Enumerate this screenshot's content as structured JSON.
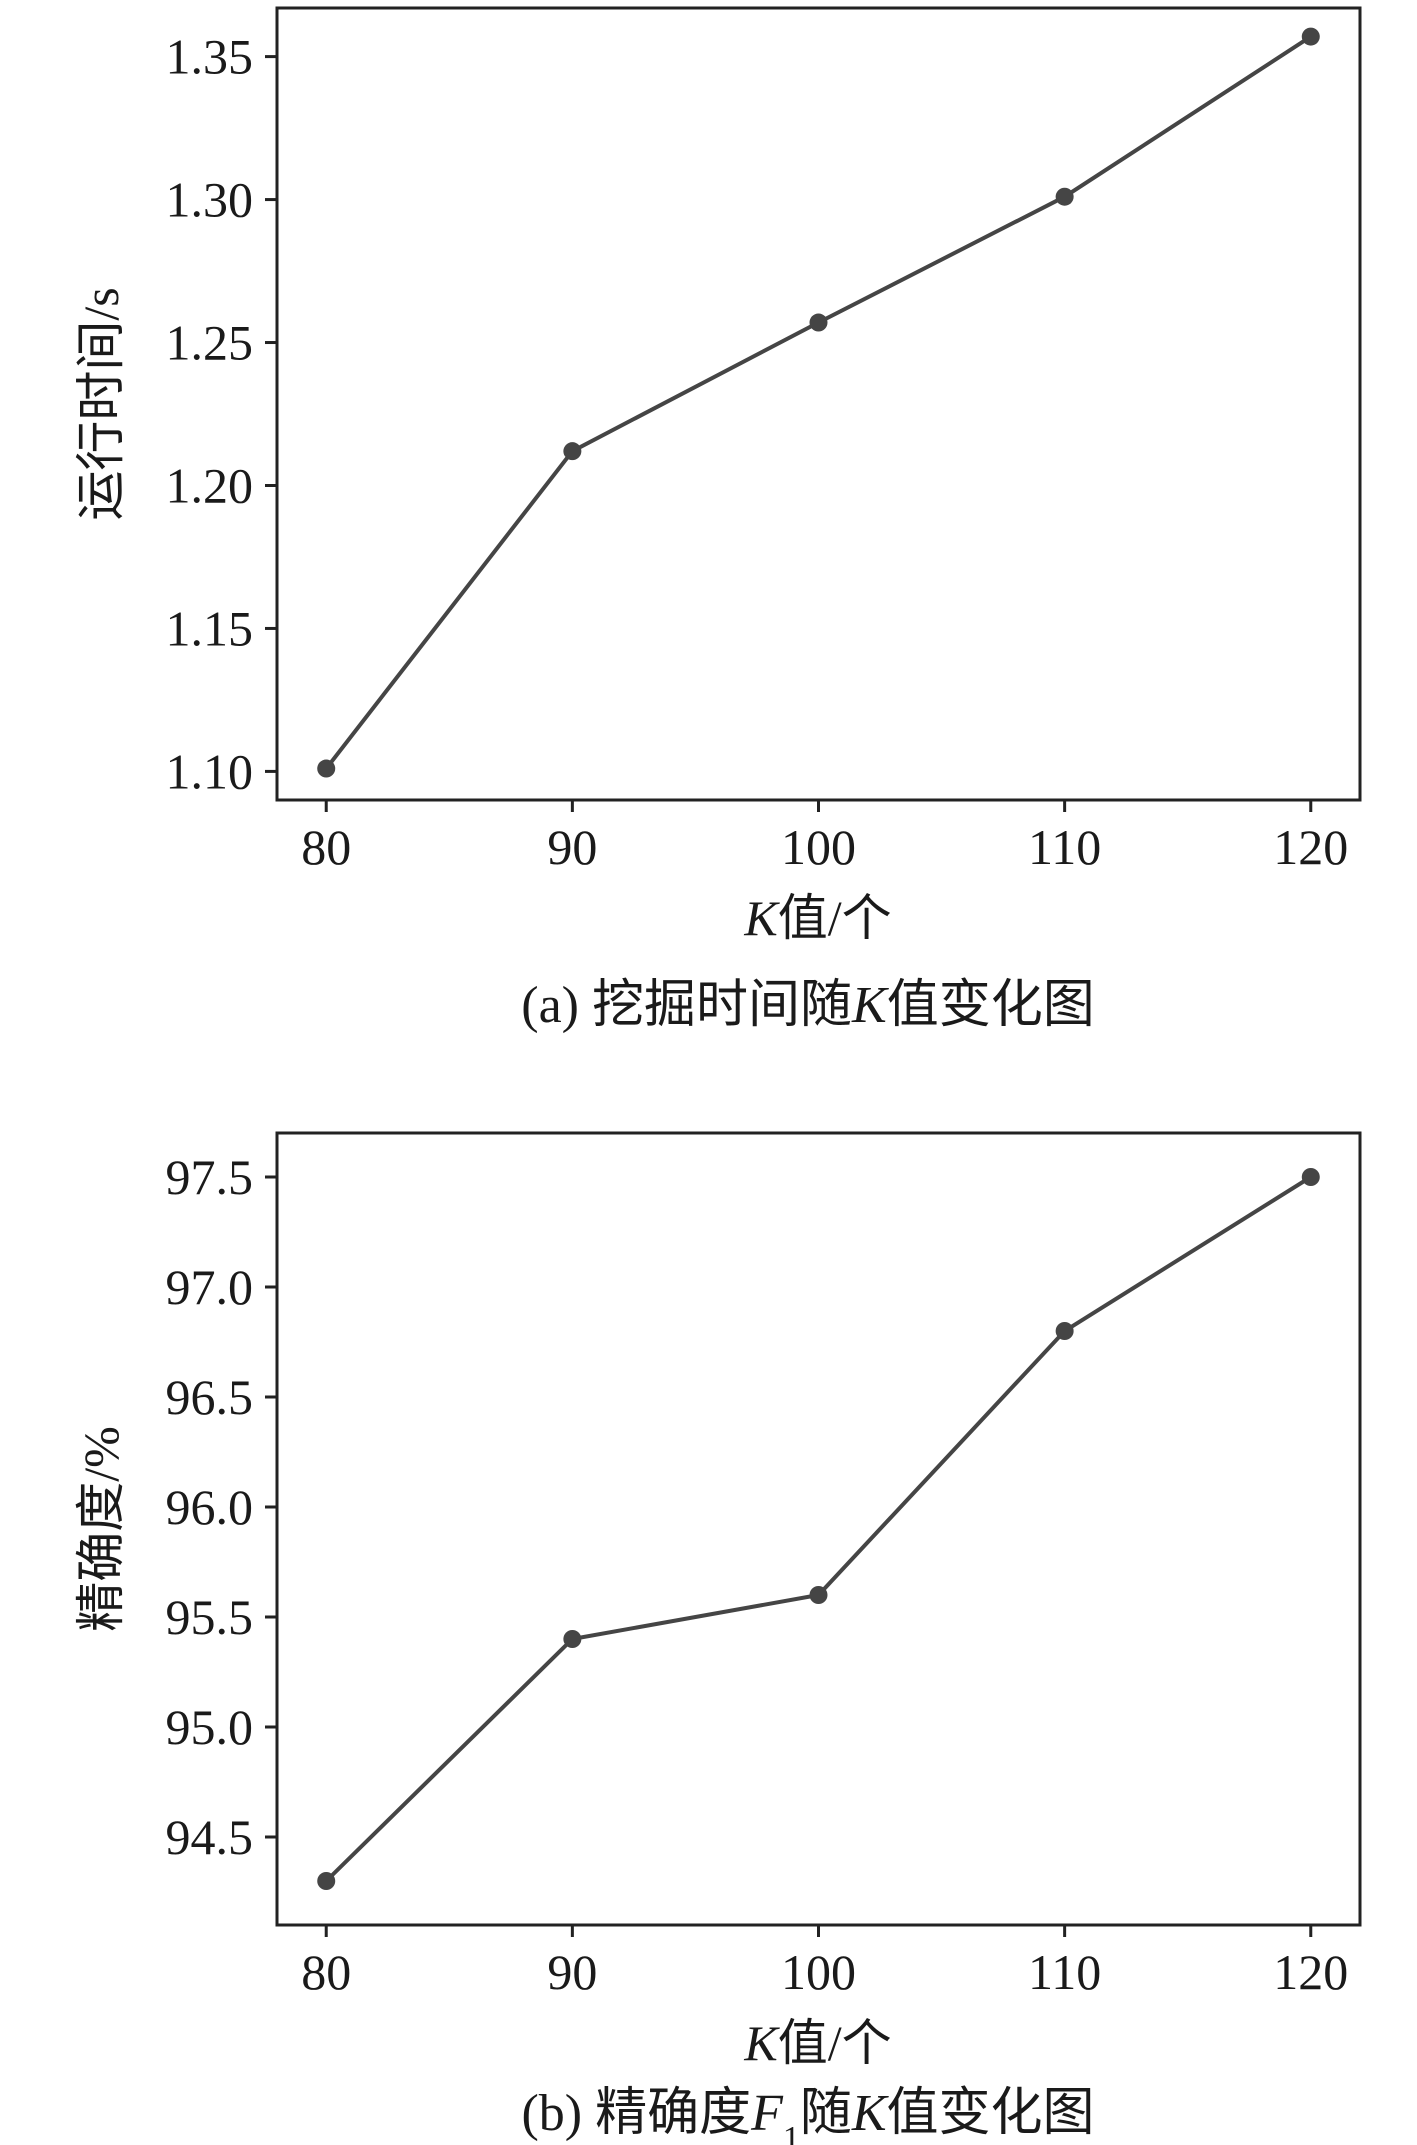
{
  "chart_data": [
    {
      "type": "line",
      "x": [
        80,
        90,
        100,
        110,
        120
      ],
      "series": [
        {
          "values": [
            1.101,
            1.212,
            1.257,
            1.301,
            1.357
          ]
        }
      ],
      "xlabel_italic": "K",
      "xlabel_rest": "值/个",
      "ylabel": "运行时间/s",
      "xlim": [
        78,
        122
      ],
      "ylim": [
        1.09,
        1.367
      ],
      "xticks": [
        80,
        90,
        100,
        110,
        120
      ],
      "yticks": [
        1.1,
        1.15,
        1.2,
        1.25,
        1.3,
        1.35
      ],
      "ytick_labels": [
        "1.10",
        "1.15",
        "1.20",
        "1.25",
        "1.30",
        "1.35"
      ],
      "grid": false,
      "line_color": "#454545",
      "caption_prefix": "(a) 挖掘时间随",
      "caption_italic": "K",
      "caption_suffix": "值变化图"
    },
    {
      "type": "line",
      "x": [
        80,
        90,
        100,
        110,
        120
      ],
      "series": [
        {
          "values": [
            94.3,
            95.4,
            95.6,
            96.8,
            97.5
          ]
        }
      ],
      "xlabel_italic": "K",
      "xlabel_rest": "值/个",
      "ylabel": "精确度/%",
      "xlim": [
        78,
        122
      ],
      "ylim": [
        94.1,
        97.7
      ],
      "xticks": [
        80,
        90,
        100,
        110,
        120
      ],
      "yticks": [
        94.5,
        95.0,
        95.5,
        96.0,
        96.5,
        97.0,
        97.5
      ],
      "ytick_labels": [
        "94.5",
        "95.0",
        "95.5",
        "96.0",
        "96.5",
        "97.0",
        "97.5"
      ],
      "grid": false,
      "line_color": "#454545",
      "caption_prefix": "(b) 精确度",
      "caption_italic": "F",
      "caption_sub": "1",
      "caption_mid": "随",
      "caption_italic2": "K",
      "caption_suffix": "值变化图"
    }
  ]
}
